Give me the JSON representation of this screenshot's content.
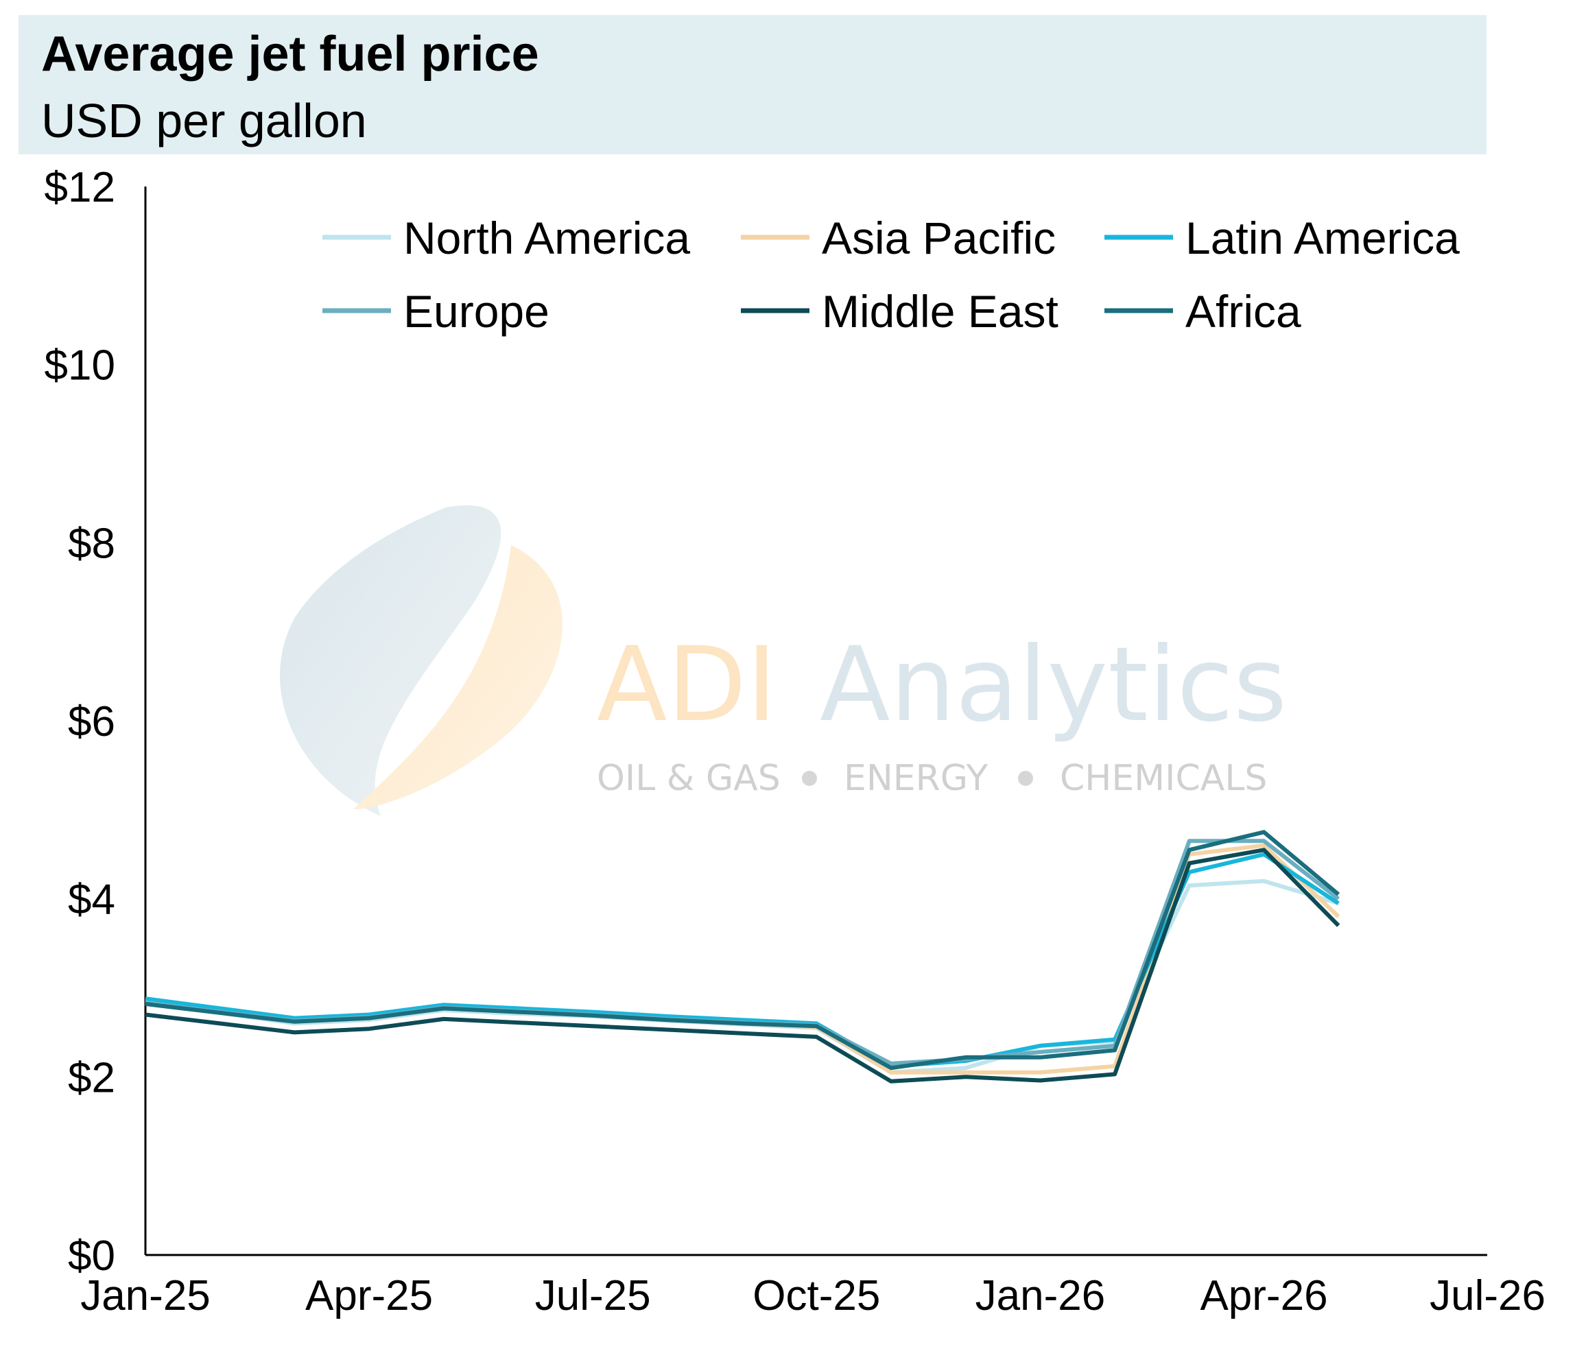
{
  "title": "Average jet fuel price",
  "subtitle": "USD per gallon",
  "watermark": {
    "brand_first": "ADI",
    "brand_second": "Analytics",
    "tagline_1": "OIL & GAS",
    "tagline_2": "ENERGY",
    "tagline_3": "CHEMICALS"
  },
  "chart_data": {
    "type": "line",
    "title": "Average jet fuel price",
    "subtitle": "USD per gallon",
    "ylim": [
      0,
      12
    ],
    "y_ticks": [
      0,
      2,
      4,
      6,
      8,
      10,
      12
    ],
    "y_tick_labels": [
      "$0",
      "$2",
      "$4",
      "$6",
      "$8",
      "$10",
      "$12"
    ],
    "x_ticks": [
      "2025-01",
      "2025-04",
      "2025-07",
      "2025-10",
      "2026-01",
      "2026-04",
      "2026-07"
    ],
    "x_tick_labels": [
      "Jan-25",
      "Apr-25",
      "Jul-25",
      "Oct-25",
      "Jan-26",
      "Apr-26",
      "Jul-26"
    ],
    "x": [
      "2025-01",
      "2025-02",
      "2025-03",
      "2025-04",
      "2025-05",
      "2025-06",
      "2025-07",
      "2025-08",
      "2025-09",
      "2025-10",
      "2025-11",
      "2025-12",
      "2026-01",
      "2026-02",
      "2026-03",
      "2026-04",
      "2026-05"
    ],
    "legend_position": "top",
    "grid": false,
    "series": [
      {
        "name": "North America",
        "color": "#bfe4ee",
        "values": [
          2.82,
          2.72,
          2.6,
          2.64,
          2.75,
          2.71,
          2.68,
          2.63,
          2.59,
          2.55,
          2.05,
          2.1,
          2.35,
          2.4,
          4.15,
          4.2,
          3.95
        ]
      },
      {
        "name": "Asia Pacific",
        "color": "#f5d3a4",
        "values": [
          2.85,
          2.74,
          2.62,
          2.66,
          2.77,
          2.73,
          2.69,
          2.64,
          2.6,
          2.56,
          2.05,
          2.05,
          2.05,
          2.12,
          4.5,
          4.6,
          3.8
        ]
      },
      {
        "name": "Latin America",
        "color": "#19b6dc",
        "values": [
          2.88,
          2.77,
          2.66,
          2.7,
          2.81,
          2.77,
          2.73,
          2.68,
          2.64,
          2.6,
          2.12,
          2.18,
          2.35,
          2.42,
          4.3,
          4.5,
          3.95
        ]
      },
      {
        "name": "Europe",
        "color": "#6aaec0",
        "values": [
          2.83,
          2.73,
          2.63,
          2.67,
          2.78,
          2.74,
          2.7,
          2.65,
          2.61,
          2.58,
          2.15,
          2.2,
          2.28,
          2.35,
          4.65,
          4.65,
          4.0
        ]
      },
      {
        "name": "Middle East",
        "color": "#0d4b55",
        "values": [
          2.7,
          2.6,
          2.5,
          2.54,
          2.65,
          2.61,
          2.57,
          2.53,
          2.49,
          2.45,
          1.95,
          2.0,
          1.96,
          2.03,
          4.4,
          4.55,
          3.7
        ]
      },
      {
        "name": "Africa",
        "color": "#1a6e7e",
        "values": [
          2.82,
          2.72,
          2.62,
          2.66,
          2.77,
          2.73,
          2.69,
          2.64,
          2.6,
          2.57,
          2.1,
          2.22,
          2.22,
          2.3,
          4.55,
          4.75,
          4.05
        ]
      }
    ]
  }
}
